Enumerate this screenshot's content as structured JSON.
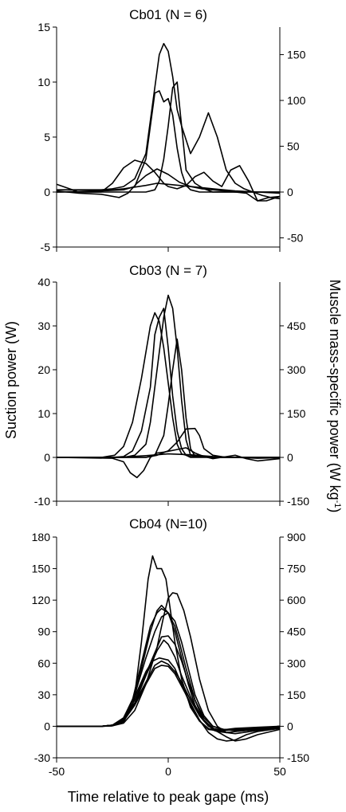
{
  "figure": {
    "ylabel_left": "Suction power (W)",
    "ylabel_right": "Muscle mass-specific power (W kg",
    "ylabel_right_sup": "-1",
    "ylabel_right_close": ")",
    "xlabel": "Time relative to peak gape (ms)"
  },
  "chart_data": [
    {
      "type": "line",
      "title": "Cb01 (N = 6)",
      "xlim": [
        -50,
        50
      ],
      "ylim": [
        -5,
        15
      ],
      "y_ticks": [
        -5,
        0,
        5,
        10,
        15
      ],
      "y_tick_labels": [
        "-5",
        "0",
        "5",
        "10",
        "15"
      ],
      "y2_ticks": [
        -50,
        0,
        50,
        100,
        150
      ],
      "y2_tick_labels": [
        "-50",
        "0",
        "50",
        "100",
        "150"
      ],
      "y2_to_y_factor": 0.0833,
      "series": [
        {
          "x": [
            -50,
            -40,
            -30,
            -25,
            -20,
            -15,
            -10,
            -8,
            -6,
            -4,
            -2,
            0,
            2,
            4,
            6,
            10,
            14,
            18,
            22,
            26,
            30,
            34,
            38,
            42,
            46,
            50
          ],
          "y": [
            0.2,
            0.2,
            0.2,
            0.3,
            0.5,
            1.2,
            3.5,
            6.5,
            9.5,
            12.5,
            13.5,
            12.8,
            10.5,
            7.5,
            6.0,
            3.5,
            5.0,
            7.2,
            5.0,
            2.0,
            0.8,
            0.3,
            0.0,
            -0.3,
            -0.5,
            -0.6
          ]
        },
        {
          "x": [
            -50,
            -30,
            -20,
            -15,
            -10,
            -8,
            -6,
            -4,
            -2,
            0,
            2,
            4,
            6,
            8,
            10,
            14,
            20,
            30,
            40,
            50
          ],
          "y": [
            0.0,
            0.1,
            0.2,
            0.5,
            3.0,
            6.0,
            9.0,
            9.2,
            8.2,
            8.5,
            7.0,
            4.0,
            1.8,
            0.6,
            0.2,
            0.0,
            0.0,
            0.0,
            0.0,
            0.0
          ]
        },
        {
          "x": [
            -50,
            -20,
            -10,
            -6,
            -4,
            -2,
            0,
            2,
            4,
            6,
            8,
            12,
            16,
            20,
            24,
            30,
            40,
            50
          ],
          "y": [
            0.0,
            0.0,
            0.0,
            0.2,
            1.0,
            3.0,
            6.0,
            9.5,
            10.0,
            6.0,
            2.0,
            0.8,
            0.3,
            0.0,
            0.0,
            0.0,
            0.0,
            0.0
          ]
        },
        {
          "x": [
            -50,
            -40,
            -30,
            -25,
            -20,
            -15,
            -10,
            -6,
            -2,
            0,
            4,
            8,
            12,
            16,
            20,
            24,
            28,
            32,
            36,
            40,
            44,
            50
          ],
          "y": [
            0.7,
            0.0,
            0.0,
            0.8,
            2.2,
            2.9,
            2.6,
            1.8,
            0.8,
            0.5,
            0.3,
            0.6,
            1.4,
            1.8,
            1.0,
            0.5,
            2.0,
            2.4,
            1.0,
            -0.8,
            -0.8,
            -0.4
          ]
        },
        {
          "x": [
            -50,
            -40,
            -30,
            -22,
            -18,
            -14,
            -10,
            -5,
            0,
            5,
            10,
            15,
            20,
            25,
            30,
            35,
            40,
            45,
            50
          ],
          "y": [
            0.1,
            -0.1,
            -0.2,
            -0.5,
            -0.1,
            0.8,
            1.5,
            2.1,
            1.6,
            0.9,
            0.5,
            0.3,
            0.2,
            0.1,
            0.0,
            -0.1,
            -0.8,
            -0.5,
            -0.4
          ]
        },
        {
          "x": [
            -50,
            -30,
            -20,
            -10,
            -5,
            0,
            10,
            20,
            30,
            40,
            50
          ],
          "y": [
            0.0,
            0.1,
            0.3,
            0.6,
            0.8,
            0.7,
            0.5,
            0.3,
            0.1,
            0.0,
            -0.1
          ]
        }
      ]
    },
    {
      "type": "line",
      "title": "Cb03 (N = 7)",
      "xlim": [
        -50,
        50
      ],
      "ylim": [
        -10,
        40
      ],
      "y_ticks": [
        -10,
        0,
        10,
        20,
        30,
        40
      ],
      "y_tick_labels": [
        "-10",
        "0",
        "10",
        "20",
        "30",
        "40"
      ],
      "y2_ticks": [
        -150,
        0,
        150,
        300,
        450
      ],
      "y2_tick_labels": [
        "-150",
        "0",
        "150",
        "300",
        "450"
      ],
      "y2_to_y_factor": 0.0667,
      "series": [
        {
          "x": [
            -50,
            -30,
            -24,
            -20,
            -16,
            -12,
            -8,
            -6,
            -4,
            -2,
            0,
            2,
            4,
            6,
            10,
            20,
            30,
            40,
            50
          ],
          "y": [
            0,
            0,
            0.5,
            2.5,
            8,
            18,
            30,
            33,
            31,
            25,
            17,
            9,
            3,
            0.8,
            0.2,
            0,
            0,
            0,
            0
          ]
        },
        {
          "x": [
            -50,
            -25,
            -20,
            -16,
            -12,
            -8,
            -6,
            -4,
            -2,
            0,
            2,
            4,
            6,
            8,
            10,
            20,
            30,
            40,
            50
          ],
          "y": [
            0,
            0,
            0.2,
            1.5,
            6,
            16,
            28,
            32,
            34,
            25,
            14,
            6,
            2,
            0.5,
            0,
            0,
            0,
            0,
            0
          ]
        },
        {
          "x": [
            -50,
            -25,
            -20,
            -15,
            -10,
            -8,
            -6,
            -4,
            -2,
            0,
            2,
            4,
            6,
            8,
            10,
            20,
            30,
            40,
            50
          ],
          "y": [
            0,
            0,
            0,
            0.5,
            3,
            8,
            16,
            24,
            32,
            37,
            34,
            25,
            13,
            4,
            0.5,
            0,
            0,
            0,
            0
          ]
        },
        {
          "x": [
            -50,
            -20,
            -10,
            -6,
            -2,
            0,
            2,
            4,
            6,
            8,
            10,
            12,
            20,
            30,
            40,
            50
          ],
          "y": [
            0,
            0,
            0,
            0.5,
            5,
            12,
            20,
            27,
            20,
            9,
            2,
            0.3,
            0,
            0,
            0,
            0
          ]
        },
        {
          "x": [
            -50,
            -25,
            -20,
            -17,
            -14,
            -11,
            -8,
            -5,
            -2,
            0,
            4,
            8,
            12,
            16,
            20,
            25,
            30,
            35,
            40,
            50
          ],
          "y": [
            0,
            -0.2,
            -1,
            -3.5,
            -4.6,
            -3,
            0,
            1,
            1.2,
            1.4,
            1.8,
            2.2,
            1.0,
            0.2,
            -0.3,
            0.1,
            0.5,
            -0.3,
            -0.8,
            -0.3
          ]
        },
        {
          "x": [
            -50,
            -20,
            -10,
            -5,
            0,
            4,
            8,
            12,
            14,
            16,
            20,
            25,
            30,
            40,
            50
          ],
          "y": [
            0,
            0,
            0,
            0.5,
            1.5,
            3.5,
            6.5,
            6.6,
            5,
            2,
            0.5,
            0.1,
            0,
            0,
            0
          ]
        },
        {
          "x": [
            -50,
            -30,
            -20,
            -10,
            0,
            10,
            20,
            30,
            40,
            50
          ],
          "y": [
            0,
            0,
            0.1,
            0.4,
            0.8,
            0.6,
            0.2,
            0,
            -0.2,
            -0.1
          ]
        }
      ]
    },
    {
      "type": "line",
      "title": "Cb04 (N=10)",
      "xlim": [
        -50,
        50
      ],
      "ylim": [
        -30,
        180
      ],
      "y_ticks": [
        -30,
        0,
        30,
        60,
        90,
        120,
        150,
        180
      ],
      "y_tick_labels": [
        "-30",
        "0",
        "30",
        "60",
        "90",
        "120",
        "150",
        "180"
      ],
      "y2_ticks": [
        -150,
        0,
        150,
        300,
        450,
        600,
        750,
        900
      ],
      "y2_tick_labels": [
        "-150",
        "0",
        "150",
        "300",
        "450",
        "600",
        "750",
        "900"
      ],
      "y2_to_y_factor": 0.2,
      "series": [
        {
          "x": [
            -50,
            -30,
            -25,
            -20,
            -15,
            -12,
            -9,
            -7,
            -5,
            -3,
            -1,
            1,
            3,
            6,
            10,
            14,
            18,
            22,
            26,
            30,
            40,
            50
          ],
          "y": [
            0,
            0,
            0.5,
            5,
            30,
            80,
            140,
            162,
            150,
            150,
            140,
            110,
            80,
            45,
            18,
            5,
            -3,
            -4,
            -3,
            -2,
            -1,
            0
          ]
        },
        {
          "x": [
            -50,
            -30,
            -25,
            -20,
            -16,
            -12,
            -8,
            -5,
            -3,
            0,
            3,
            5,
            8,
            12,
            16,
            20,
            25,
            30,
            40,
            50
          ],
          "y": [
            0,
            0,
            1,
            5,
            25,
            60,
            95,
            108,
            112,
            108,
            95,
            80,
            55,
            25,
            5,
            -3,
            -4,
            -3,
            -2,
            0
          ]
        },
        {
          "x": [
            -50,
            -30,
            -25,
            -20,
            -16,
            -12,
            -8,
            -5,
            -3,
            0,
            3,
            6,
            9,
            12,
            16,
            20,
            25,
            30,
            40,
            50
          ],
          "y": [
            0,
            0,
            0.5,
            4,
            20,
            55,
            90,
            110,
            115,
            108,
            90,
            65,
            40,
            20,
            5,
            -2,
            -4,
            -3,
            -2,
            0
          ]
        },
        {
          "x": [
            -50,
            -30,
            -25,
            -20,
            -15,
            -10,
            -6,
            -3,
            0,
            3,
            6,
            9,
            12,
            16,
            20,
            25,
            30,
            40,
            50
          ],
          "y": [
            0,
            0,
            1,
            8,
            30,
            65,
            90,
            104,
            108,
            100,
            80,
            55,
            30,
            10,
            0,
            -3,
            -4,
            -3,
            0
          ]
        },
        {
          "x": [
            -50,
            -30,
            -25,
            -20,
            -15,
            -10,
            -5,
            -2,
            0,
            2,
            4,
            7,
            10,
            14,
            18,
            22,
            26,
            30,
            40,
            50
          ],
          "y": [
            0,
            0,
            0.5,
            3,
            15,
            40,
            75,
            105,
            122,
            127,
            126,
            110,
            85,
            45,
            15,
            0,
            -6,
            -7,
            -4,
            -1
          ]
        },
        {
          "x": [
            -50,
            -30,
            -25,
            -20,
            -15,
            -10,
            -6,
            -3,
            0,
            3,
            6,
            9,
            12,
            16,
            20,
            24,
            30,
            40,
            50
          ],
          "y": [
            0,
            0,
            1,
            7,
            25,
            50,
            70,
            85,
            86,
            78,
            62,
            42,
            25,
            8,
            0,
            -3,
            -3,
            -2,
            0
          ]
        },
        {
          "x": [
            -50,
            -30,
            -25,
            -20,
            -15,
            -10,
            -6,
            -3,
            0,
            3,
            6,
            10,
            14,
            18,
            22,
            26,
            30,
            35,
            40,
            50
          ],
          "y": [
            0,
            0,
            1,
            6,
            22,
            42,
            58,
            62,
            59,
            52,
            42,
            25,
            10,
            2,
            -5,
            -10,
            -14,
            -12,
            -8,
            -3
          ]
        },
        {
          "x": [
            -50,
            -30,
            -25,
            -20,
            -15,
            -10,
            -6,
            -3,
            0,
            3,
            6,
            10,
            14,
            18,
            22,
            26,
            30,
            35,
            40,
            50
          ],
          "y": [
            0,
            0,
            1,
            5,
            20,
            40,
            55,
            58,
            57,
            50,
            38,
            22,
            6,
            -6,
            -12,
            -14,
            -13,
            -8,
            -5,
            -2
          ]
        },
        {
          "x": [
            -50,
            -30,
            -25,
            -20,
            -15,
            -10,
            -7,
            -4,
            0,
            3,
            6,
            10,
            14,
            18,
            22,
            26,
            30,
            40,
            50
          ],
          "y": [
            0,
            0,
            1,
            8,
            28,
            52,
            62,
            65,
            63,
            55,
            40,
            20,
            5,
            -2,
            -5,
            -6,
            -5,
            -3,
            -1
          ]
        },
        {
          "x": [
            -50,
            -30,
            -25,
            -20,
            -15,
            -10,
            -5,
            -2,
            0,
            3,
            6,
            10,
            14,
            18,
            22,
            26,
            30,
            40,
            50
          ],
          "y": [
            0,
            0,
            1,
            6,
            22,
            48,
            72,
            82,
            78,
            66,
            48,
            28,
            10,
            0,
            -4,
            -6,
            -5,
            -3,
            0
          ]
        }
      ]
    }
  ]
}
